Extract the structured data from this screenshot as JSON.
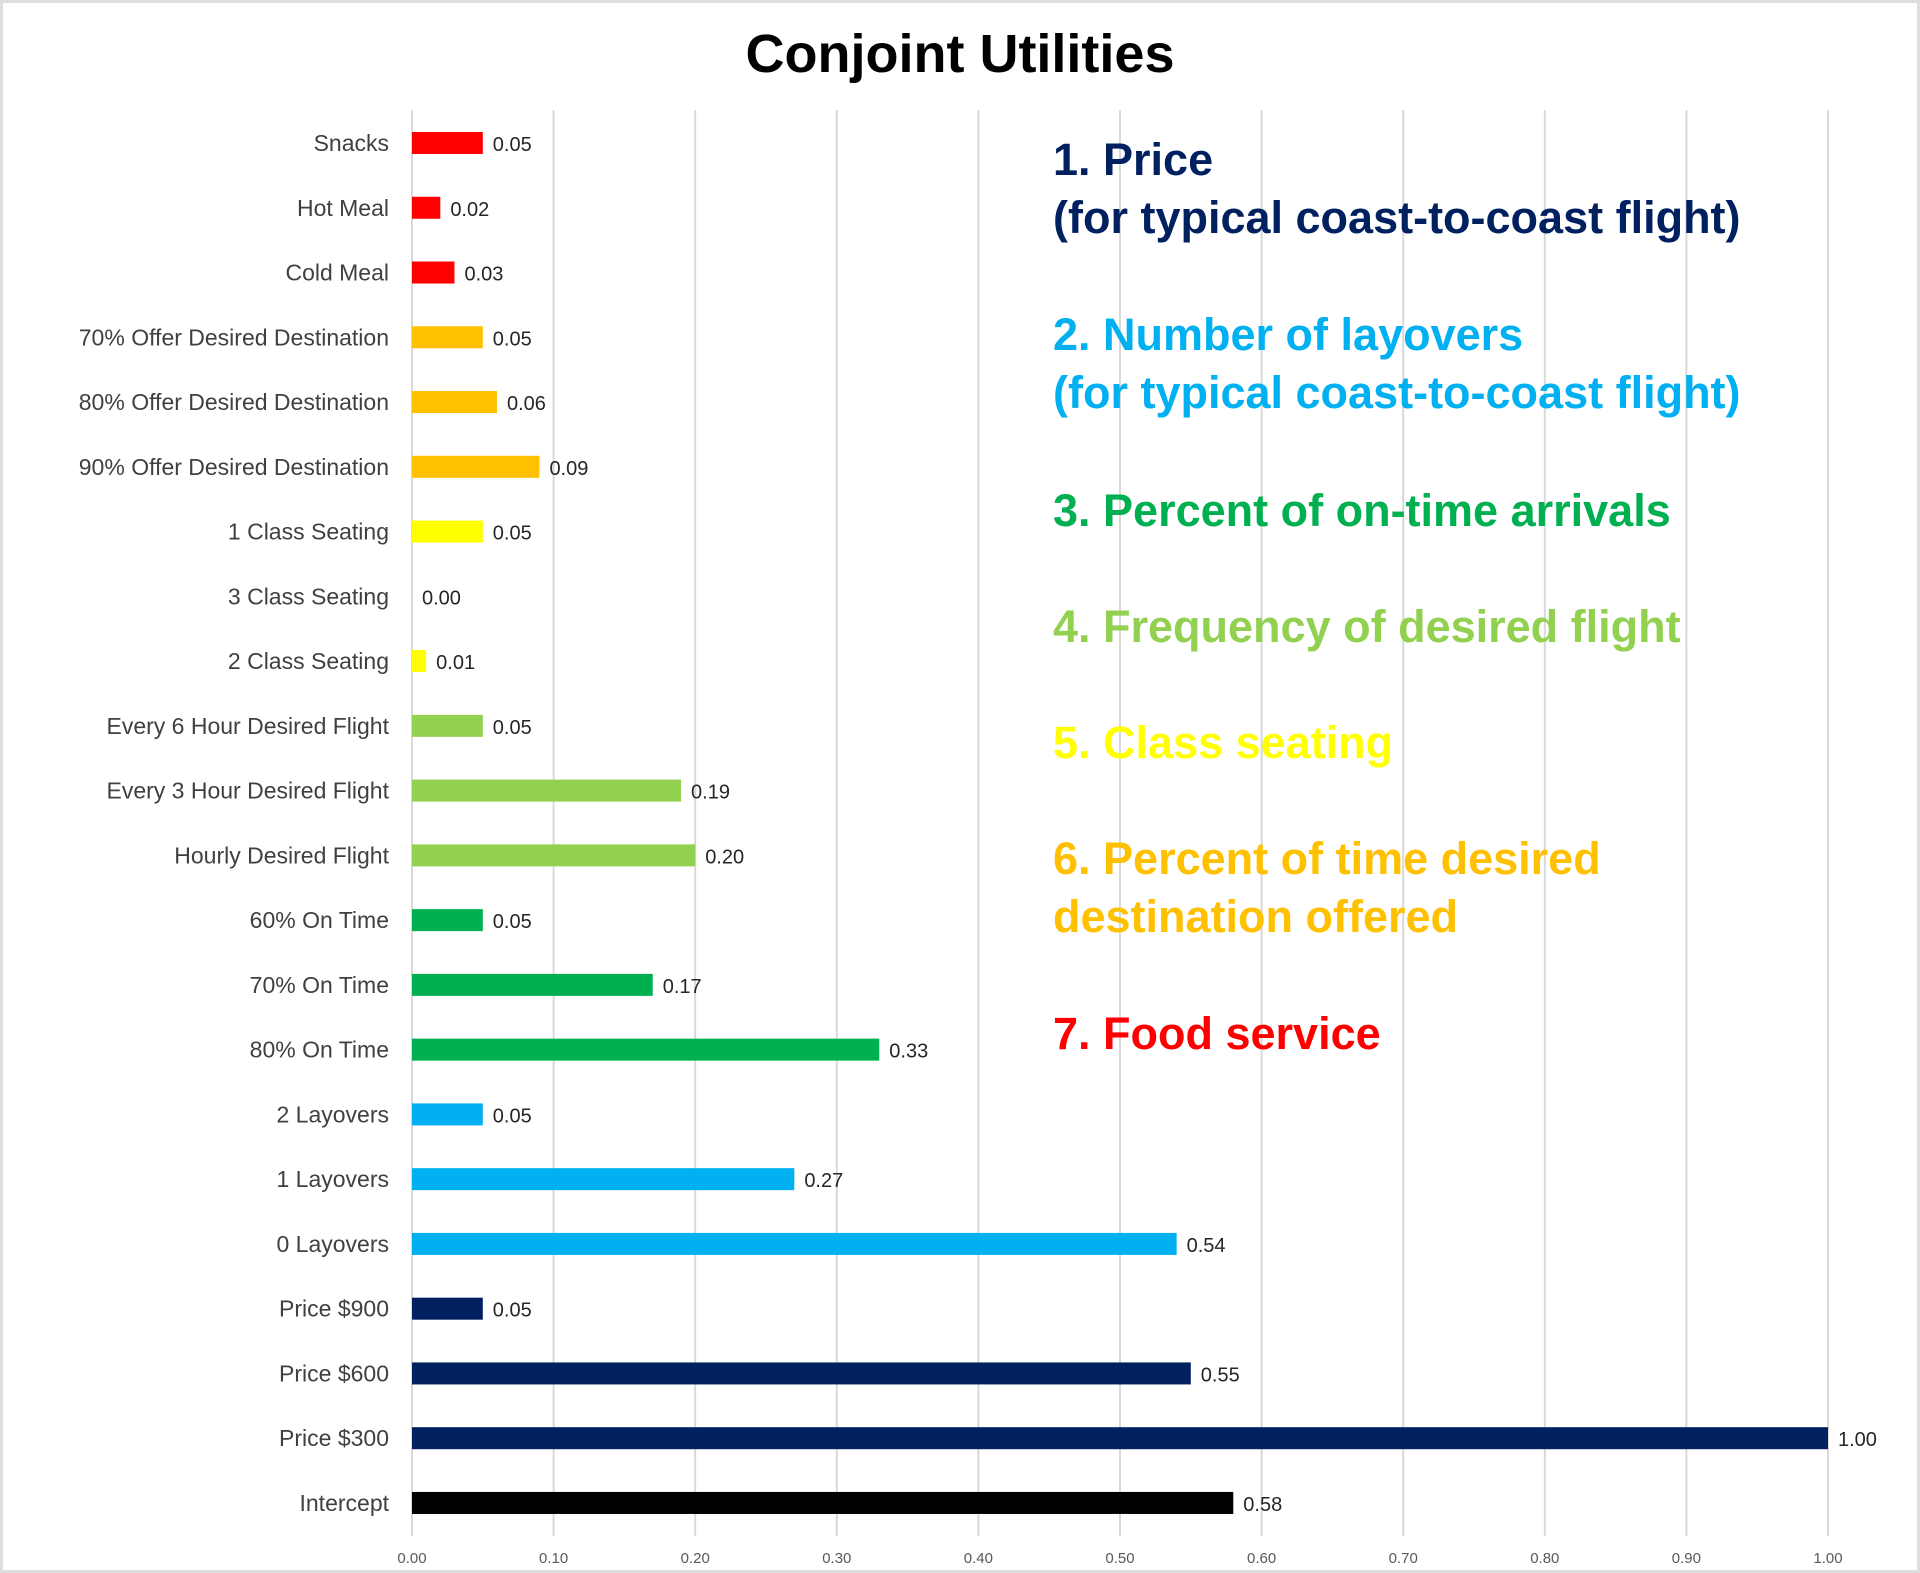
{
  "chart_data": {
    "type": "bar",
    "orientation": "horizontal",
    "title": "Conjoint Utilities",
    "xlabel": "",
    "ylabel": "",
    "xlim": [
      0,
      1.0
    ],
    "grid": true,
    "x_ticks": [
      "0.00",
      "0.10",
      "0.20",
      "0.30",
      "0.40",
      "0.50",
      "0.60",
      "0.70",
      "0.80",
      "0.90",
      "1.00"
    ],
    "categories": [
      "Snacks",
      "Hot Meal",
      "Cold Meal",
      "70% Offer Desired Destination",
      "80% Offer Desired Destination",
      "90% Offer Desired Destination",
      "1 Class Seating",
      "3 Class Seating",
      "2 Class Seating",
      "Every 6 Hour Desired Flight",
      "Every 3 Hour Desired Flight",
      "Hourly Desired Flight",
      "60% On Time",
      "70% On Time",
      "80% On Time",
      "2 Layovers",
      "1 Layovers",
      "0 Layovers",
      "Price $900",
      "Price $600",
      "Price $300",
      "Intercept"
    ],
    "values": [
      0.05,
      0.02,
      0.03,
      0.05,
      0.06,
      0.09,
      0.05,
      0.0,
      0.01,
      0.05,
      0.19,
      0.2,
      0.05,
      0.17,
      0.33,
      0.05,
      0.27,
      0.54,
      0.05,
      0.55,
      1.0,
      0.58
    ],
    "value_labels": [
      "0.05",
      "0.02",
      "0.03",
      "0.05",
      "0.06",
      "0.09",
      "0.05",
      "0.00",
      "0.01",
      "0.05",
      "0.19",
      "0.20",
      "0.05",
      "0.17",
      "0.33",
      "0.05",
      "0.27",
      "0.54",
      "0.05",
      "0.55",
      "1.00",
      "0.58"
    ],
    "bar_groups": [
      7,
      7,
      7,
      6,
      6,
      6,
      5,
      5,
      5,
      4,
      4,
      4,
      3,
      3,
      3,
      2,
      2,
      2,
      1,
      1,
      1,
      0
    ],
    "group_colors": {
      "0": "#000000",
      "1": "#002060",
      "2": "#00B0F0",
      "3": "#00B050",
      "4": "#92D050",
      "5": "#FFFF00",
      "6": "#FFC000",
      "7": "#FF0000"
    },
    "legend_position": "top-right",
    "legend": [
      {
        "lines": [
          "1. Price",
          "(for typical coast-to-coast flight)"
        ],
        "color": "#002060"
      },
      {
        "lines": [
          "2. Number of layovers",
          "(for typical coast-to-coast flight)"
        ],
        "color": "#00B0F0"
      },
      {
        "lines": [
          "3. Percent of on-time arrivals"
        ],
        "color": "#00B050"
      },
      {
        "lines": [
          "4. Frequency of desired flight"
        ],
        "color": "#92D050"
      },
      {
        "lines": [
          "5. Class seating"
        ],
        "color": "#FFFF00"
      },
      {
        "lines": [
          "6. Percent of time desired",
          "destination offered"
        ],
        "color": "#FFC000"
      },
      {
        "lines": [
          "7. Food service"
        ],
        "color": "#FF0000"
      }
    ]
  }
}
